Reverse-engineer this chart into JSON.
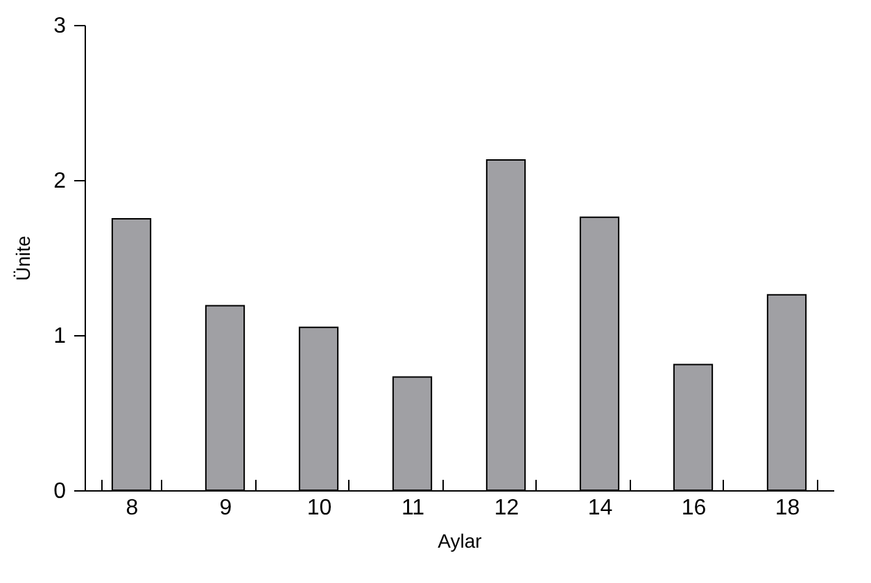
{
  "chart_data": {
    "type": "bar",
    "xlabel": "Aylar",
    "ylabel": "Ünite",
    "categories": [
      "8",
      "9",
      "10",
      "11",
      "12",
      "14",
      "16",
      "18"
    ],
    "values": [
      1.75,
      1.19,
      1.05,
      0.73,
      2.13,
      1.76,
      0.81,
      1.26
    ],
    "color": "#a0a0a4",
    "ylim": [
      0,
      3
    ],
    "yticks": [
      0,
      1,
      2,
      3
    ],
    "grid": false
  }
}
